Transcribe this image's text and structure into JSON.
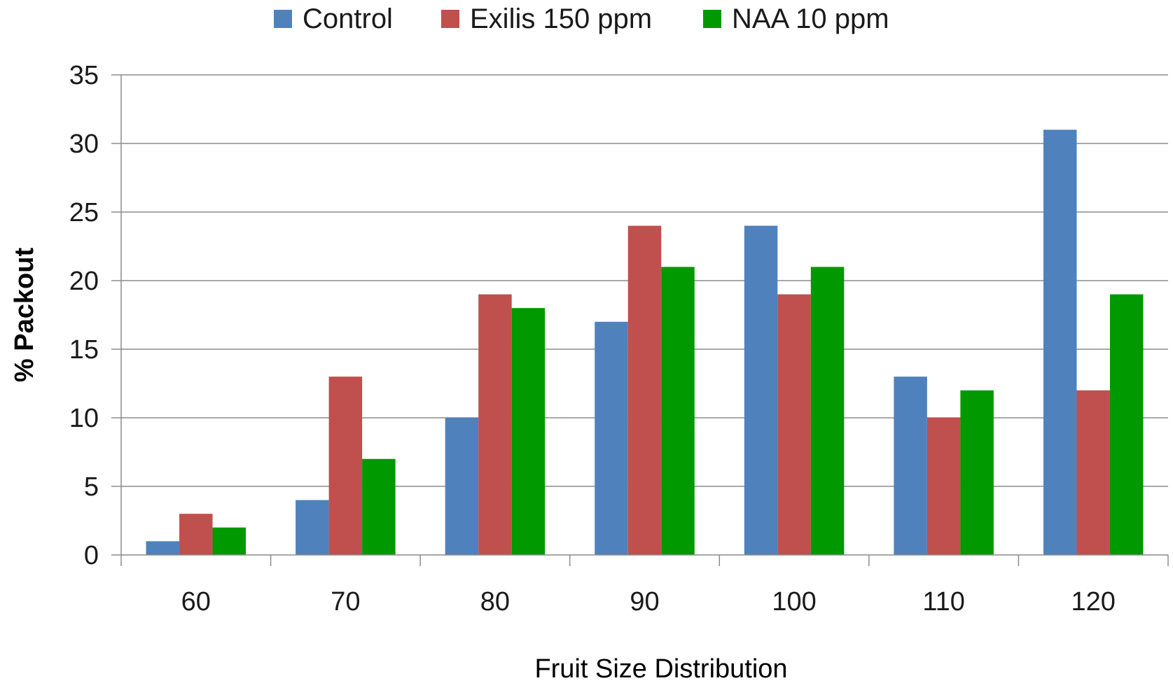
{
  "chart_data": {
    "type": "bar",
    "categories": [
      "60",
      "70",
      "80",
      "90",
      "100",
      "110",
      "120"
    ],
    "series": [
      {
        "name": "Control",
        "color": "#4F81BD",
        "values": [
          1,
          4,
          10,
          17,
          24,
          13,
          31
        ]
      },
      {
        "name": "Exilis 150 ppm",
        "color": "#C0504D",
        "values": [
          3,
          13,
          19,
          24,
          19,
          10,
          12
        ]
      },
      {
        "name": "NAA 10 ppm",
        "color": "#009900",
        "values": [
          2,
          7,
          18,
          21,
          21,
          12,
          19
        ]
      }
    ],
    "title": "",
    "xlabel": "Fruit Size Distribution",
    "ylabel": "% Packout",
    "ylim": [
      0,
      35
    ],
    "yticks": [
      "0",
      "5",
      "10",
      "15",
      "20",
      "25",
      "30",
      "35"
    ],
    "grid": true,
    "legend": "top-center"
  }
}
